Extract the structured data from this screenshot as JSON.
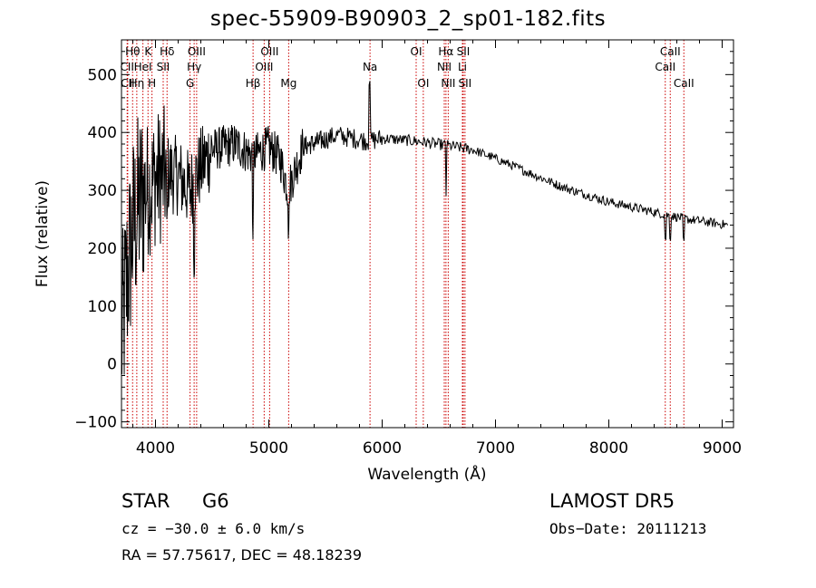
{
  "chart_data": {
    "type": "line",
    "title": "spec-55909-B90903_2_sp01-182.fits",
    "xlabel": "Wavelength (Å)",
    "ylabel": "Flux (relative)",
    "xlim": [
      3700,
      9100
    ],
    "ylim": [
      -110,
      560
    ],
    "xticks": [
      4000,
      5000,
      6000,
      7000,
      8000,
      9000
    ],
    "yticks": [
      -100,
      0,
      100,
      200,
      300,
      400,
      500
    ],
    "grid": false,
    "line_color": "#000000",
    "marker_color": "#cc0000",
    "continuum": [
      [
        3700,
        40
      ],
      [
        3750,
        150
      ],
      [
        3800,
        230
      ],
      [
        3850,
        270
      ],
      [
        3900,
        300
      ],
      [
        3950,
        305
      ],
      [
        4000,
        320
      ],
      [
        4100,
        330
      ],
      [
        4200,
        325
      ],
      [
        4300,
        300
      ],
      [
        4400,
        340
      ],
      [
        4500,
        370
      ],
      [
        4700,
        380
      ],
      [
        4860,
        360
      ],
      [
        5000,
        375
      ],
      [
        5100,
        355
      ],
      [
        5170,
        300
      ],
      [
        5300,
        375
      ],
      [
        5600,
        395
      ],
      [
        5890,
        385
      ],
      [
        6000,
        390
      ],
      [
        6300,
        385
      ],
      [
        6563,
        378
      ],
      [
        6800,
        370
      ],
      [
        7000,
        355
      ],
      [
        7300,
        330
      ],
      [
        7600,
        305
      ],
      [
        8000,
        280
      ],
      [
        8500,
        258
      ],
      [
        8700,
        250
      ],
      [
        9050,
        240
      ]
    ],
    "line_markers": [
      {
        "label": "Hθ",
        "x": 3798,
        "row": 1
      },
      {
        "label": "CII",
        "x": 3750,
        "row": 2
      },
      {
        "label": "CII",
        "x": 3755,
        "row": 3
      },
      {
        "label": "Hη",
        "x": 3835,
        "row": 3
      },
      {
        "label": "K",
        "x": 3934,
        "row": 1
      },
      {
        "label": "HeI",
        "x": 3889,
        "row": 2
      },
      {
        "label": "H",
        "x": 3969,
        "row": 3
      },
      {
        "label": "Hδ",
        "x": 4102,
        "row": 1
      },
      {
        "label": "SII",
        "x": 4068,
        "row": 2
      },
      {
        "label": "OIII",
        "x": 4363,
        "row": 1
      },
      {
        "label": "Hγ",
        "x": 4341,
        "row": 2
      },
      {
        "label": "G",
        "x": 4305,
        "row": 3
      },
      {
        "label": "OIII",
        "x": 5007,
        "row": 1
      },
      {
        "label": "OIII",
        "x": 4959,
        "row": 2
      },
      {
        "label": "Hβ",
        "x": 4861,
        "row": 3
      },
      {
        "label": "Mg",
        "x": 5175,
        "row": 3
      },
      {
        "label": "Na",
        "x": 5893,
        "row": 2
      },
      {
        "label": "OI",
        "x": 6300,
        "row": 1
      },
      {
        "label": "OI",
        "x": 6363,
        "row": 3
      },
      {
        "label": "Hα",
        "x": 6563,
        "row": 1
      },
      {
        "label": "SII",
        "x": 6716,
        "row": 1
      },
      {
        "label": "NII",
        "x": 6548,
        "row": 2
      },
      {
        "label": "Li",
        "x": 6708,
        "row": 2
      },
      {
        "label": "NII",
        "x": 6583,
        "row": 3
      },
      {
        "label": "SII",
        "x": 6731,
        "row": 3
      },
      {
        "label": "CaII",
        "x": 8542,
        "row": 1
      },
      {
        "label": "CaII",
        "x": 8498,
        "row": 2
      },
      {
        "label": "CaII",
        "x": 8662,
        "row": 3
      }
    ]
  },
  "info": {
    "object_class": "STAR",
    "subclass": "G6",
    "survey": "LAMOST DR5",
    "redshift_text": "cz = −30.0 ± 6.0 km/s",
    "obs_date_text": "Obs−Date: 20111213",
    "coords_text": "RA =  57.75617, DEC =  48.18239"
  }
}
